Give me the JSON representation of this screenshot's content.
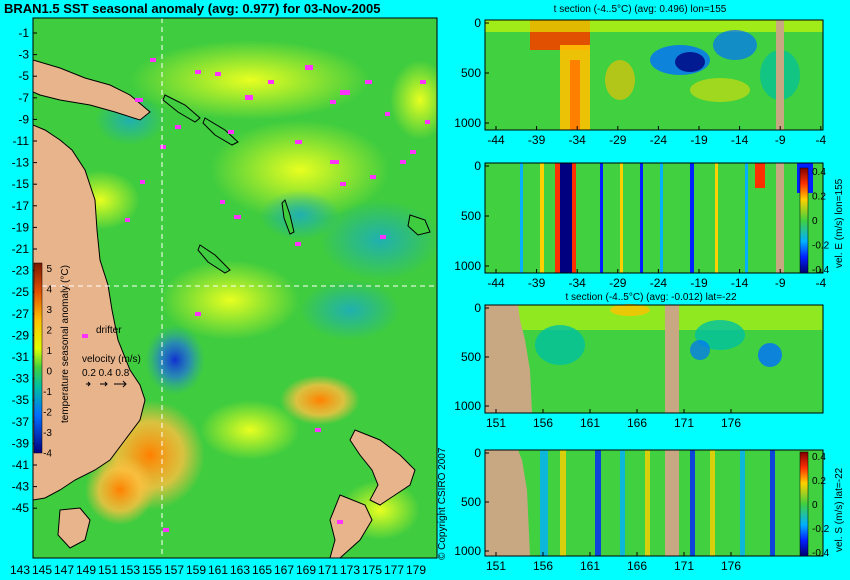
{
  "map": {
    "title": "BRAN1.5 SST seasonal anomaly (avg: 0.977) for 03-Nov-2005",
    "lat_ticks": [
      "-1",
      "-3",
      "-5",
      "-7",
      "-9",
      "-11",
      "-13",
      "-15",
      "-17",
      "-19",
      "-21",
      "-23",
      "-25",
      "-27",
      "-29",
      "-31",
      "-33",
      "-35",
      "-37",
      "-39",
      "-41",
      "-43",
      "-45"
    ],
    "lon_ticks": [
      "143",
      "145",
      "147",
      "149",
      "151",
      "153",
      "155",
      "157",
      "159",
      "161",
      "163",
      "165",
      "167",
      "169",
      "171",
      "173",
      "175",
      "177",
      "179"
    ],
    "colorbar": {
      "label": "temperature seasonal anomaly (°C)",
      "ticks": [
        "5",
        "4",
        "3",
        "2",
        "1",
        "0",
        "-1",
        "-2",
        "-3",
        "-4"
      ]
    },
    "legend": {
      "drifter_label": "drifter",
      "velocity_label": "velocity (m/s)",
      "velocity_values": "0.2 0.4 0.8"
    },
    "copyright": "© Copyright CSIRO 2007",
    "colors": {
      "land": "#e8b48c",
      "ocean_base": "#3fcc3f",
      "drifter": "#ff33ff",
      "background": "#00ffff"
    }
  },
  "panels": [
    {
      "title": "t section (-4..5°C) (avg: 0.496) lon=155",
      "x_ticks": [
        "-44",
        "-39",
        "-34",
        "-29",
        "-24",
        "-19",
        "-14",
        "-9",
        "-4"
      ],
      "y_ticks": [
        "0",
        "500",
        "1000"
      ],
      "side_label": ""
    },
    {
      "title": "",
      "x_ticks": [
        "-44",
        "-39",
        "-34",
        "-29",
        "-24",
        "-19",
        "-14",
        "-9",
        "-4"
      ],
      "y_ticks": [
        "0",
        "500",
        "1000"
      ],
      "side_label": "vel. E (m/s) lon=155",
      "colorbar_ticks": [
        "0.4",
        "0.2",
        "0",
        "-0.2",
        "-0.4"
      ]
    },
    {
      "title": "t section (-4..5°C) (avg: -0.012) lat=-22",
      "x_ticks": [
        "151",
        "156",
        "161",
        "166",
        "171",
        "176"
      ],
      "y_ticks": [
        "0",
        "500",
        "1000"
      ],
      "side_label": ""
    },
    {
      "title": "",
      "x_ticks": [
        "151",
        "156",
        "161",
        "166",
        "171",
        "176"
      ],
      "y_ticks": [
        "0",
        "500",
        "1000"
      ],
      "side_label": "vel. S (m/s) lat=-22",
      "colorbar_ticks": [
        "0.4",
        "0.2",
        "0",
        "-0.2",
        "-0.4"
      ]
    }
  ]
}
